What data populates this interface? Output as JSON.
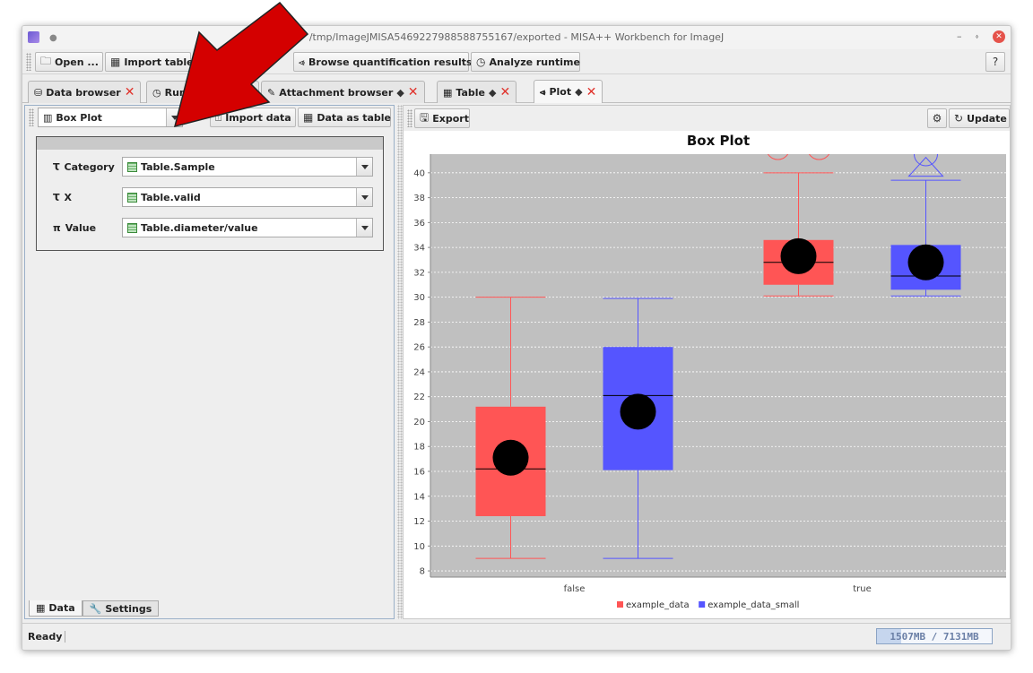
{
  "window": {
    "title": "/tmp/ImageJMISA5469227988588755167/exported - MISA++ Workbench for ImageJ"
  },
  "toolbar": {
    "open_label": "Open ...",
    "import_table_label": "Import table",
    "browse_quant_label": "Browse quantification results",
    "analyze_runtime_label": "Analyze runtime"
  },
  "tabs": [
    {
      "label": "Data browser",
      "closable": true
    },
    {
      "label": "Runt",
      "closable": false
    },
    {
      "label": "Attachment browser",
      "closable": true
    },
    {
      "label": "Table",
      "closable": true
    },
    {
      "label": "Plot",
      "closable": true,
      "active": true
    }
  ],
  "left": {
    "plot_type": "Box Plot",
    "import_data_label": "Import data",
    "data_as_table_label": "Data as table",
    "fields": [
      {
        "type_icon": "Ꚍ",
        "label": "Category",
        "value": "Table.Sample"
      },
      {
        "type_icon": "Ꚍ",
        "label": "X",
        "value": "Table.valid"
      },
      {
        "type_icon": "π",
        "label": "Value",
        "value": "Table.diameter/value"
      }
    ],
    "bottom_tabs": {
      "data": "Data",
      "settings": "Settings"
    }
  },
  "right": {
    "export_label": "Export",
    "update_label": "Update"
  },
  "status": {
    "text": "Ready",
    "memory": "1507MB / 7131MB",
    "memory_fraction": 0.21
  },
  "colors": {
    "series1": "#ff5555",
    "series2": "#5555ff",
    "plot_bg": "#c0c0c0",
    "arrow": "#d40000"
  },
  "chart_data": {
    "type": "box",
    "title": "Box Plot",
    "categories": [
      "false",
      "true"
    ],
    "ylim": [
      7.5,
      41.5
    ],
    "yticks": [
      8,
      10,
      12,
      14,
      16,
      18,
      20,
      22,
      24,
      26,
      28,
      30,
      32,
      34,
      36,
      38,
      40
    ],
    "grid": true,
    "legend_position": "bottom",
    "series": [
      {
        "name": "example_data",
        "color": "#ff5555",
        "boxes": [
          {
            "min": 9,
            "q1": 12.4,
            "median": 16.2,
            "q3": 21.2,
            "max": 30,
            "mean": 17.1
          },
          {
            "min": 30.1,
            "q1": 31.0,
            "median": 32.8,
            "q3": 34.6,
            "max": 40,
            "mean": 33.3,
            "outliers": [
              42,
              42
            ]
          }
        ]
      },
      {
        "name": "example_data_small",
        "color": "#5555ff",
        "boxes": [
          {
            "min": 9,
            "q1": 16.1,
            "median": 22.1,
            "q3": 26.0,
            "max": 29.9,
            "mean": 20.8
          },
          {
            "min": 30.1,
            "q1": 30.6,
            "median": 31.7,
            "q3": 34.2,
            "max": 39.4,
            "mean": 32.8,
            "outliers": [
              41.5
            ],
            "far_outliers": [
              40.3
            ]
          }
        ]
      }
    ]
  }
}
